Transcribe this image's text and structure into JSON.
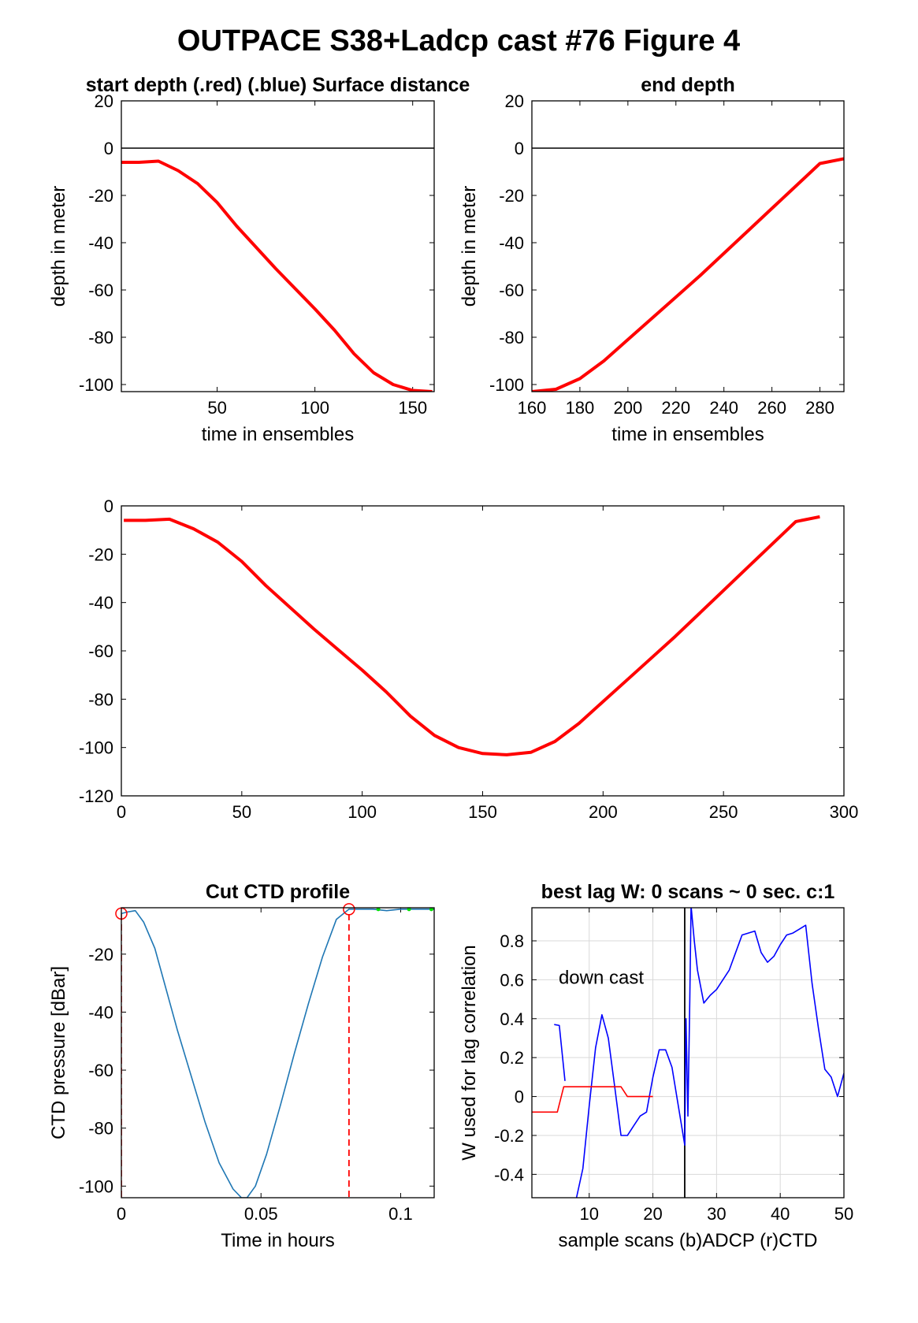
{
  "figure_title": "OUTPACE S38+Ladcp cast #76   Figure 4",
  "chart_data": [
    {
      "id": "start_depth",
      "type": "line",
      "title": "start depth (.red) (.blue) Surface distance",
      "xlabel": "time in ensembles",
      "ylabel": "depth in meter",
      "xlim": [
        1,
        161
      ],
      "ylim": [
        -103,
        20
      ],
      "xticks": [
        50,
        100,
        150
      ],
      "yticks": [
        20,
        0,
        -20,
        -40,
        -60,
        -80,
        -100
      ],
      "hline": 0,
      "series": [
        {
          "color": "#ff0000",
          "x": [
            1,
            10,
            20,
            30,
            40,
            50,
            60,
            70,
            80,
            90,
            100,
            110,
            120,
            130,
            140,
            150,
            160
          ],
          "y": [
            -6,
            -6,
            -5.5,
            -9.5,
            -15,
            -23,
            -33,
            -42,
            -51,
            -59.5,
            -68,
            -77,
            -87,
            -95,
            -100,
            -102.5,
            -103
          ]
        }
      ]
    },
    {
      "id": "end_depth",
      "type": "line",
      "title": "end depth",
      "xlabel": "time in ensembles",
      "ylabel": "depth in meter",
      "xlim": [
        160,
        290
      ],
      "ylim": [
        -103,
        20
      ],
      "xticks": [
        160,
        180,
        200,
        220,
        240,
        260,
        280
      ],
      "yticks": [
        20,
        0,
        -20,
        -40,
        -60,
        -80,
        -100
      ],
      "hline": 0,
      "series": [
        {
          "color": "#ff0000",
          "x": [
            160,
            170,
            180,
            190,
            200,
            210,
            220,
            230,
            240,
            250,
            260,
            270,
            280,
            290
          ],
          "y": [
            -103,
            -102,
            -97.5,
            -90,
            -81,
            -72,
            -63,
            -54,
            -44.5,
            -35,
            -25.5,
            -16,
            -6.5,
            -4.5
          ]
        }
      ]
    },
    {
      "id": "full_profile",
      "type": "line",
      "title": "",
      "xlabel": "",
      "ylabel": "",
      "xlim": [
        0,
        300
      ],
      "ylim": [
        -120,
        0
      ],
      "xticks": [
        0,
        50,
        100,
        150,
        200,
        250,
        300
      ],
      "yticks": [
        0,
        -20,
        -40,
        -60,
        -80,
        -100,
        -120
      ],
      "series": [
        {
          "color": "#ff0000",
          "x": [
            1,
            10,
            20,
            30,
            40,
            50,
            60,
            70,
            80,
            90,
            100,
            110,
            120,
            130,
            140,
            150,
            160,
            170,
            180,
            190,
            200,
            210,
            220,
            230,
            240,
            250,
            260,
            270,
            280,
            290
          ],
          "y": [
            -6,
            -6,
            -5.5,
            -9.5,
            -15,
            -23,
            -33,
            -42,
            -51,
            -59.5,
            -68,
            -77,
            -87,
            -95,
            -100,
            -102.5,
            -103,
            -102,
            -97.5,
            -90,
            -81,
            -72,
            -63,
            -54,
            -44.5,
            -35,
            -25.5,
            -16,
            -6.5,
            -4.5
          ]
        }
      ]
    },
    {
      "id": "cut_ctd",
      "type": "line",
      "title": "Cut CTD profile",
      "xlabel": "Time in hours",
      "ylabel": "CTD pressure [dBar]",
      "xlim": [
        0,
        0.112
      ],
      "ylim": [
        -104,
        -4
      ],
      "xticks": [
        0,
        0.05,
        0.1
      ],
      "xticklabels": [
        "0",
        "0.05",
        "0.1"
      ],
      "yticks": [
        -20,
        -40,
        -60,
        -80,
        -100
      ],
      "vlines": [
        0,
        0.0815
      ],
      "markers": [
        {
          "x": 0,
          "y": -6
        },
        {
          "x": 0.0815,
          "y": -4.5
        }
      ],
      "series": [
        {
          "color": "#1f77b4",
          "x": [
            0,
            0.002,
            0.005,
            0.008,
            0.012,
            0.016,
            0.02,
            0.025,
            0.03,
            0.035,
            0.04,
            0.043,
            0.045,
            0.048,
            0.052,
            0.057,
            0.062,
            0.067,
            0.072,
            0.077,
            0.0815,
            0.085,
            0.09,
            0.095,
            0.1,
            0.105,
            0.11,
            0.112
          ],
          "y": [
            -6,
            -5.5,
            -5,
            -9,
            -18,
            -32,
            -46,
            -62,
            -78,
            -92,
            -101,
            -104,
            -104,
            -100,
            -89,
            -72,
            -54,
            -37,
            -21,
            -8,
            -4.5,
            -4.5,
            -4.5,
            -5,
            -4.5,
            -4.5,
            -4.5,
            -4.5
          ]
        },
        {
          "color": "#00e000",
          "x": [
            0.092,
            0.103,
            0.111
          ],
          "y": [
            -4.5,
            -4.5,
            -4.5
          ]
        }
      ]
    },
    {
      "id": "best_lag",
      "type": "line",
      "title": "best lag W: 0 scans ~ 0 sec.  c:1",
      "xlabel": "sample scans (b)ADCP (r)CTD",
      "ylabel": "W used for lag correlation",
      "xlim": [
        1,
        50
      ],
      "ylim": [
        -0.52,
        0.97
      ],
      "xticks": [
        10,
        20,
        30,
        40,
        50
      ],
      "yticks": [
        0.8,
        0.6,
        0.4,
        0.2,
        0,
        -0.2,
        -0.4
      ],
      "yticklabels": [
        "0.8",
        "0.6",
        "0.4",
        "0.2",
        "0",
        "-0.2",
        "-0.4"
      ],
      "grid": true,
      "vline": 25,
      "annotation": "down cast",
      "series": [
        {
          "color": "#0000ff",
          "segments": [
            {
              "x": [
                4.5,
                5.3,
                6.2
              ],
              "y": [
                0.37,
                0.365,
                0.08
              ]
            },
            {
              "x": [
                8,
                9,
                10,
                11,
                12,
                13,
                14,
                15,
                16,
                17,
                18,
                19,
                20,
                21,
                22,
                23,
                24,
                25,
                25.2,
                25.5,
                25.8,
                26,
                26.5,
                27,
                28,
                29,
                30,
                31,
                32,
                33,
                34,
                35,
                36,
                37,
                38,
                39,
                40,
                41,
                42,
                43,
                44,
                45,
                46,
                47,
                48,
                49,
                50
              ],
              "y": [
                -0.52,
                -0.37,
                -0.05,
                0.25,
                0.42,
                0.3,
                0.05,
                -0.2,
                -0.2,
                -0.15,
                -0.1,
                -0.08,
                0.1,
                0.24,
                0.24,
                0.15,
                -0.05,
                -0.25,
                0.4,
                -0.1,
                0.5,
                0.98,
                0.8,
                0.65,
                0.48,
                0.52,
                0.55,
                0.6,
                0.65,
                0.74,
                0.83,
                0.84,
                0.85,
                0.74,
                0.69,
                0.72,
                0.78,
                0.83,
                0.84,
                0.86,
                0.88,
                0.58,
                0.35,
                0.14,
                0.1,
                0.0,
                0.12
              ]
            }
          ]
        },
        {
          "color": "#ff0000",
          "segments": [
            {
              "x": [
                1,
                5,
                6,
                15,
                16,
                20
              ],
              "y": [
                -0.08,
                -0.08,
                0.05,
                0.05,
                0.0,
                0.0
              ]
            }
          ]
        }
      ]
    }
  ]
}
